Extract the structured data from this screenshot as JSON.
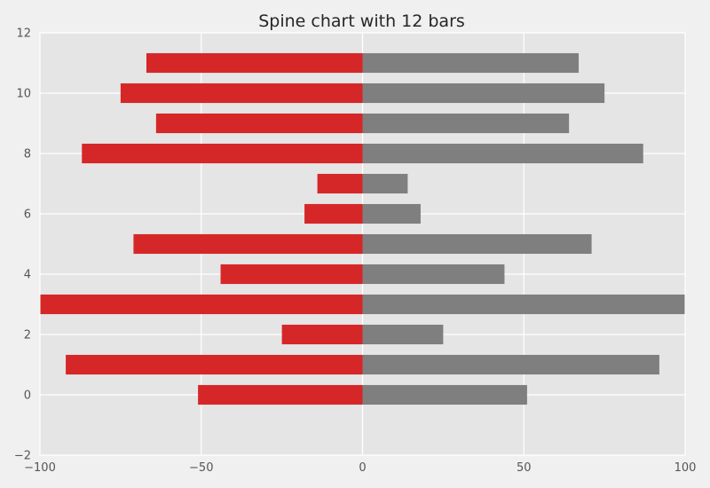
{
  "chart_data": {
    "type": "bar",
    "orientation": "horizontal",
    "title": "Spine chart with 12 bars",
    "xlabel": "",
    "ylabel": "",
    "xlim": [
      -100,
      100
    ],
    "ylim": [
      -2,
      12
    ],
    "x_ticks": [
      -100,
      -50,
      0,
      50,
      100
    ],
    "x_tick_labels": [
      "−100",
      "−50",
      "0",
      "50",
      "100"
    ],
    "y_ticks": [
      -2,
      0,
      2,
      4,
      6,
      8,
      10,
      12
    ],
    "y_tick_labels": [
      "−2",
      "0",
      "2",
      "4",
      "6",
      "8",
      "10",
      "12"
    ],
    "grid": true,
    "categories": [
      0,
      1,
      2,
      3,
      4,
      5,
      6,
      7,
      8,
      9,
      10,
      11
    ],
    "series": [
      {
        "values": [
          -51,
          -92,
          -25,
          -100,
          -44,
          -71,
          -18,
          -14,
          -87,
          -64,
          -75,
          -67
        ],
        "color": "#d62728"
      },
      {
        "values": [
          51,
          92,
          25,
          100,
          44,
          71,
          18,
          14,
          87,
          64,
          75,
          67
        ],
        "color": "#7f7f7f"
      }
    ],
    "bar_height": 0.65,
    "background_color": "#e5e5e5",
    "figure_color": "#f0f0f0",
    "grid_color": "#ffffff"
  }
}
